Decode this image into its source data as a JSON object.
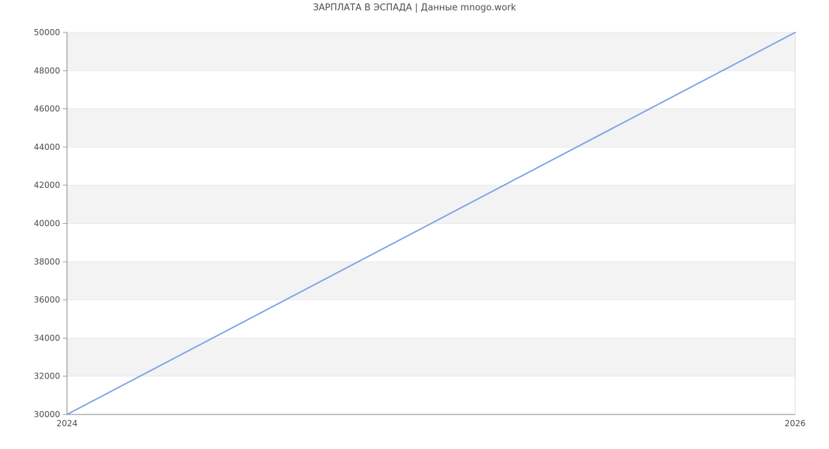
{
  "title": "ЗАРПЛАТА В ЭСПАДА | Данные mnogo.work",
  "chart_data": {
    "type": "line",
    "title": "ЗАРПЛАТА В ЭСПАДА | Данные mnogo.work",
    "x": [
      2024,
      2026
    ],
    "values": [
      30000,
      50000
    ],
    "xlabel": "",
    "ylabel": "",
    "xlim": [
      2024,
      2026
    ],
    "ylim": [
      30000,
      50000
    ],
    "xticks": [
      2024,
      2026
    ],
    "yticks": [
      30000,
      32000,
      34000,
      36000,
      38000,
      40000,
      42000,
      44000,
      46000,
      48000,
      50000
    ],
    "grid": true,
    "alternating_bands": true,
    "legend_position": "none",
    "markers": false,
    "style": {
      "line_color": "#7ba2e7",
      "band_color": "#f3f3f3",
      "grid_color": "#e8e8e8",
      "axis_color": "#808080",
      "tick_color": "#999999",
      "border_color": "#d9d9d9",
      "text_color": "#4d4d4d",
      "background": "#ffffff"
    }
  }
}
